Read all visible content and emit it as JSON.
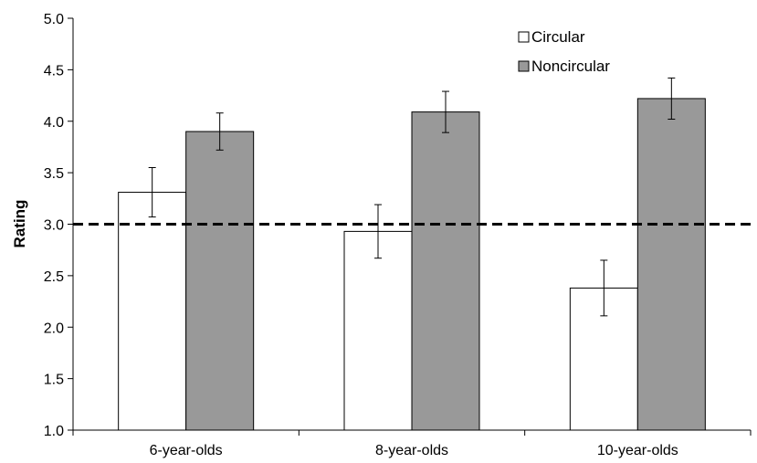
{
  "chart_data": {
    "type": "bar",
    "categories": [
      "6-year-olds",
      "8-year-olds",
      "10-year-olds"
    ],
    "series": [
      {
        "name": "Circular",
        "color": "#ffffff",
        "values": [
          3.31,
          2.93,
          2.38
        ],
        "error": [
          0.24,
          0.26,
          0.27
        ]
      },
      {
        "name": "Noncircular",
        "color": "#999999",
        "values": [
          3.9,
          4.09,
          4.22
        ],
        "error": [
          0.18,
          0.2,
          0.2
        ]
      }
    ],
    "ylabel": "Rating",
    "xlabel": "",
    "title": "",
    "ylim": [
      1.0,
      5.0
    ],
    "yticks": [
      "1.0",
      "1.5",
      "2.0",
      "2.5",
      "3.0",
      "3.5",
      "4.0",
      "4.5",
      "5.0"
    ],
    "reference_line": 3.0,
    "grid": false,
    "legend": "top-right"
  }
}
